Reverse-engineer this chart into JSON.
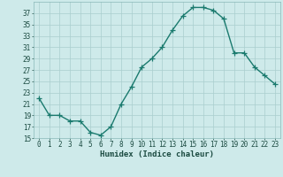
{
  "x": [
    0,
    1,
    2,
    3,
    4,
    5,
    6,
    7,
    8,
    9,
    10,
    11,
    12,
    13,
    14,
    15,
    16,
    17,
    18,
    19,
    20,
    21,
    22,
    23
  ],
  "y": [
    22,
    19,
    19,
    18,
    18,
    16,
    15.5,
    17,
    21,
    24,
    27.5,
    29,
    31,
    34,
    36.5,
    38,
    38,
    37.5,
    36,
    30,
    30,
    27.5,
    26,
    24.5
  ],
  "line_color": "#1a7a6e",
  "marker": "+",
  "marker_size": 4,
  "bg_color": "#ceeaea",
  "grid_color": "#aacece",
  "xlabel": "Humidex (Indice chaleur)",
  "ylim": [
    15,
    39
  ],
  "xlim": [
    -0.5,
    23.5
  ],
  "yticks": [
    15,
    17,
    19,
    21,
    23,
    25,
    27,
    29,
    31,
    33,
    35,
    37
  ],
  "xticks": [
    0,
    1,
    2,
    3,
    4,
    5,
    6,
    7,
    8,
    9,
    10,
    11,
    12,
    13,
    14,
    15,
    16,
    17,
    18,
    19,
    20,
    21,
    22,
    23
  ],
  "tick_fontsize": 5.5,
  "label_fontsize": 6.5,
  "linewidth": 1.0,
  "marker_edge_width": 0.9
}
